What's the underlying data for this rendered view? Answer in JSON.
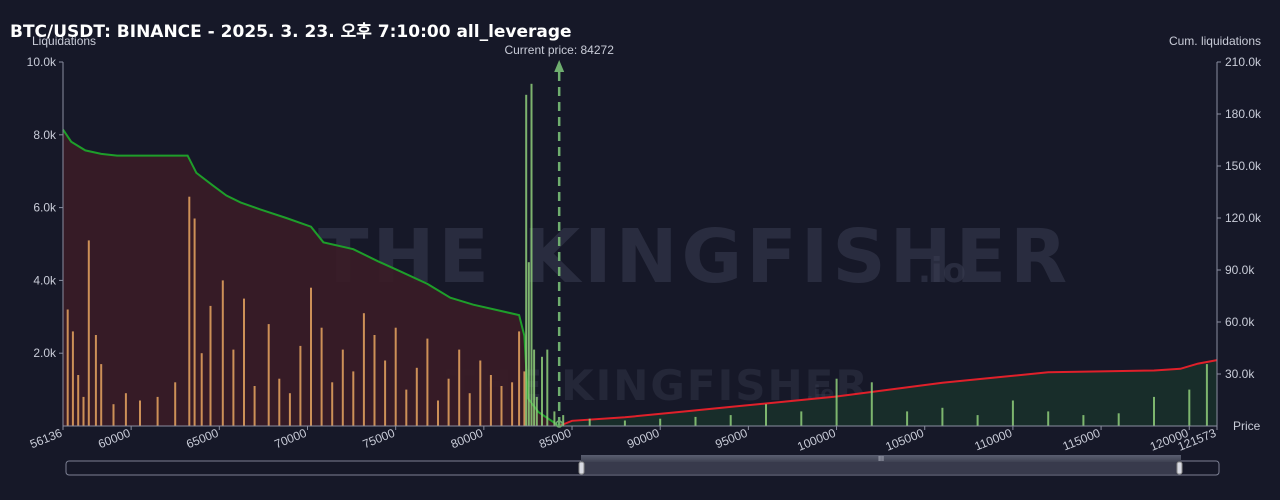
{
  "title": "BTC/USDT: BINANCE - 2025. 3. 23. 오후 7:10:00 all_leverage",
  "watermark": {
    "brand": "THE KINGFISHER",
    "suffix": ".io"
  },
  "colors": {
    "background": "#161828",
    "short_liq_bar": "#f0a860",
    "long_liq_bar": "#8fcf7a",
    "cum_left_line": "#1e9e2a",
    "cum_left_fill": "#3a1c26",
    "cum_right_line": "#e0202a",
    "cum_right_fill": "#18302a",
    "current_price_line": "#6fae6f",
    "navigator": "#4a4d5e"
  },
  "chart_data": {
    "type": "bar",
    "title": "BTC/USDT: BINANCE - 2025. 3. 23. 오후 7:10:00 all_leverage",
    "xlabel": "Price",
    "ylabel": "Liquidations",
    "y2label": "Cum. liquidations",
    "xlim": [
      56136,
      121573
    ],
    "ylim": [
      0,
      10000
    ],
    "y2lim": [
      0,
      210000
    ],
    "x_ticks": [
      "56136",
      "60000",
      "65000",
      "70000",
      "75000",
      "80000",
      "85000",
      "90000",
      "95000",
      "100000",
      "105000",
      "110000",
      "115000",
      "120000",
      "121573"
    ],
    "y_ticks": [
      "2.0k",
      "4.0k",
      "6.0k",
      "8.0k",
      "10.0k"
    ],
    "y2_ticks": [
      "30.0k",
      "60.0k",
      "90.0k",
      "120.0k",
      "150.0k",
      "180.0k",
      "210.0k"
    ],
    "current_price": {
      "value": 84272,
      "label": "Current price: 84272"
    },
    "series": [
      {
        "type": "bar",
        "color": "#e8a560",
        "x": [
          56400,
          56700,
          57000,
          57300,
          57600,
          58000,
          58300,
          59000,
          59700,
          60500,
          61500,
          62500,
          63300,
          63600,
          64000,
          64500,
          65200,
          65800,
          66400,
          67000,
          67800,
          68400,
          69000,
          69600,
          70200,
          70800,
          71400,
          72000,
          72600,
          73200,
          73800,
          74400,
          75000,
          75600,
          76200,
          76800,
          77400,
          78000,
          78600,
          79200,
          79800,
          80400,
          81000,
          81600,
          82000,
          82300
        ],
        "values": [
          3200,
          2600,
          1400,
          800,
          5100,
          2500,
          1700,
          600,
          900,
          700,
          800,
          1200,
          6300,
          5700,
          2000,
          3300,
          4000,
          2100,
          3500,
          1100,
          2800,
          1300,
          900,
          2200,
          3800,
          2700,
          1200,
          2100,
          1500,
          3100,
          2500,
          1800,
          2700,
          1000,
          1600,
          2400,
          700,
          1300,
          2100,
          900,
          1800,
          1400,
          1100,
          1200,
          2600,
          1500
        ]
      },
      {
        "type": "bar",
        "color": "#8fcf7a",
        "x": [
          82400,
          82550,
          82700,
          82850,
          83000,
          83300,
          83600,
          84000,
          84500,
          86000,
          88000,
          90000,
          92000,
          94000,
          96000,
          98000,
          100000,
          102000,
          104000,
          106000,
          108000,
          110000,
          112000,
          114000,
          116000,
          118000,
          120000,
          121000
        ],
        "values": [
          9100,
          4500,
          9400,
          2100,
          800,
          1900,
          2100,
          400,
          300,
          200,
          150,
          200,
          250,
          300,
          600,
          400,
          1300,
          1200,
          400,
          500,
          300,
          700,
          400,
          300,
          350,
          800,
          1000,
          1700
        ]
      },
      {
        "type": "line",
        "name": "cum_left",
        "color": "#1e9e2a",
        "x": [
          56136,
          56600,
          57400,
          58300,
          59200,
          63200,
          63700,
          64600,
          65400,
          66200,
          67300,
          68800,
          70200,
          70900,
          72600,
          74000,
          75300,
          76800,
          78100,
          79400,
          80700,
          82000,
          82300,
          82500,
          83100,
          84272
        ],
        "values": [
          171000,
          164000,
          159000,
          157000,
          156000,
          156000,
          146000,
          139000,
          133000,
          129000,
          125000,
          120000,
          115000,
          106000,
          102000,
          95000,
          89000,
          82000,
          74000,
          70000,
          67000,
          64000,
          52000,
          16000,
          8000,
          0
        ]
      },
      {
        "type": "line",
        "name": "cum_right",
        "color": "#e0202a",
        "x": [
          84272,
          85000,
          88000,
          91000,
          94000,
          97000,
          100000,
          103000,
          106000,
          109000,
          112000,
          115000,
          118000,
          119500,
          120500,
          121573
        ],
        "values": [
          0,
          3000,
          5000,
          8000,
          11000,
          14000,
          17000,
          21000,
          25000,
          28000,
          31000,
          31500,
          32000,
          33000,
          36000,
          38000
        ]
      }
    ]
  }
}
